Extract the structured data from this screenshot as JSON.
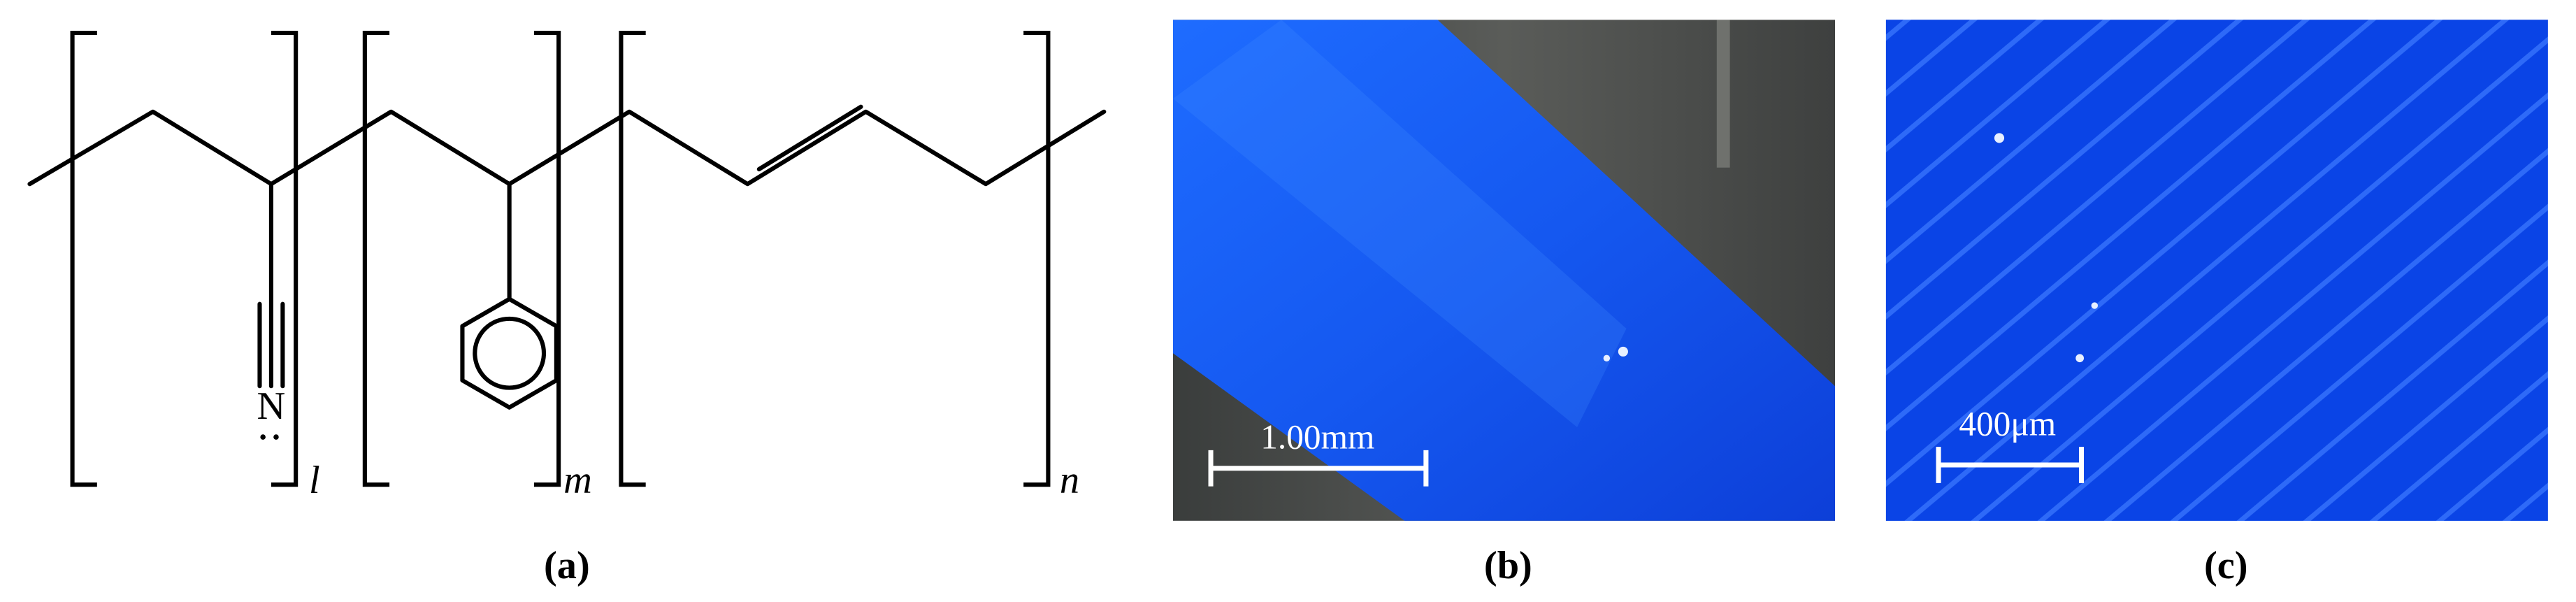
{
  "structure": {
    "atom": "N",
    "subscripts": [
      "l",
      "m",
      "n"
    ]
  },
  "panels": [
    {
      "label": "(a)"
    },
    {
      "label": "(b)",
      "scale_bar": "1.00mm"
    },
    {
      "label": "(c)",
      "scale_bar": "400μm"
    }
  ]
}
